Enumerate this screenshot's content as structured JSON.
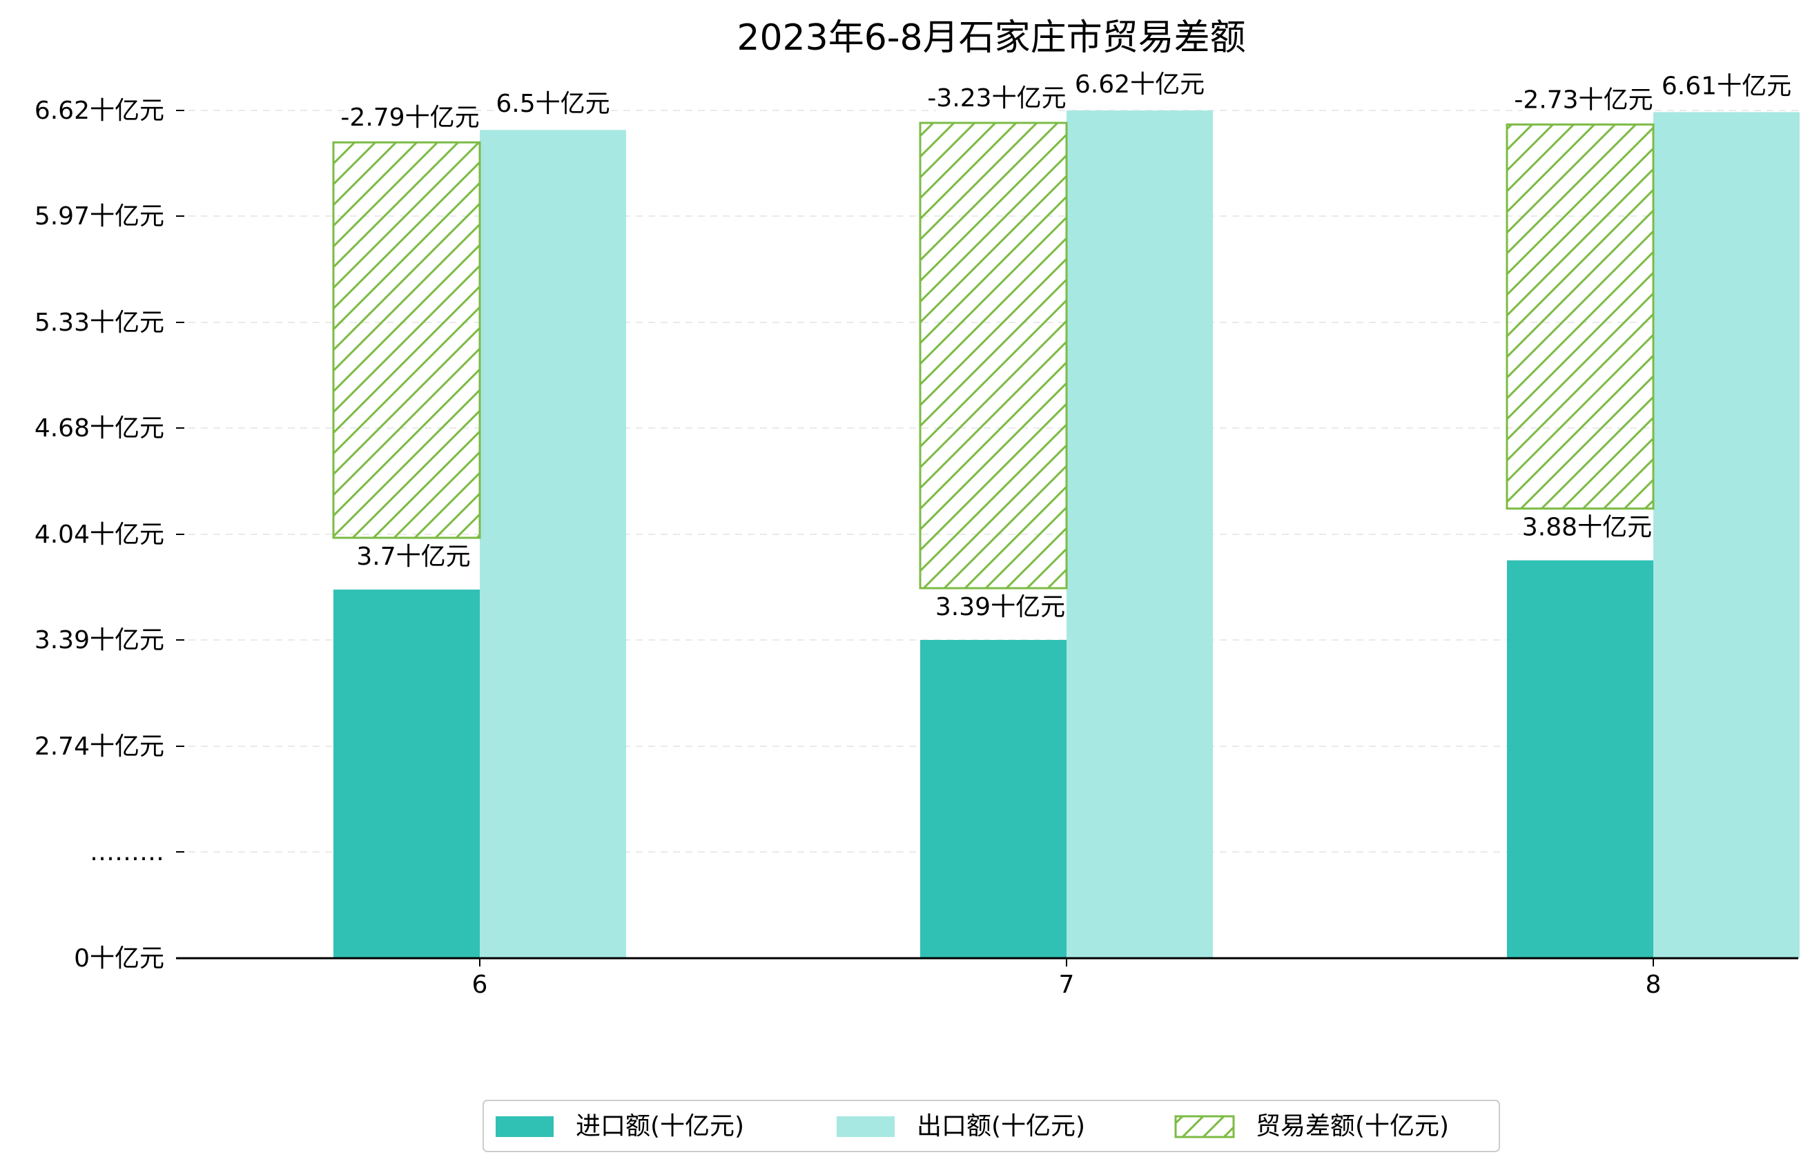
{
  "chart_data": {
    "type": "bar",
    "title": "2023年6-8月石家庄市贸易差额",
    "categories": [
      "6",
      "7",
      "8"
    ],
    "unit": "十亿元",
    "y_tick_labels": [
      "0十亿元",
      "………",
      "2.74十亿元",
      "3.39十亿元",
      "4.04十亿元",
      "4.68十亿元",
      "5.33十亿元",
      "5.97十亿元",
      "6.62十亿元"
    ],
    "series": [
      {
        "name": "进口额(十亿元)",
        "values": [
          3.7,
          3.39,
          3.88
        ],
        "labels": [
          "3.7十亿元",
          "3.39十亿元",
          "3.88十亿元"
        ],
        "color": "#31c0b4"
      },
      {
        "name": "出口额(十亿元)",
        "values": [
          6.5,
          6.62,
          6.61
        ],
        "labels": [
          "6.5十亿元",
          "6.62十亿元",
          "6.61十亿元"
        ],
        "color": "#a8e8e2"
      },
      {
        "name": "贸易差额(十亿元)",
        "values": [
          -2.79,
          -3.23,
          -2.73
        ],
        "labels": [
          "-2.79十亿元",
          "-3.23十亿元",
          "-2.73十亿元"
        ],
        "color": "#7cbb44",
        "hatched": true
      }
    ],
    "legend": "bottom-center",
    "grid": true
  }
}
